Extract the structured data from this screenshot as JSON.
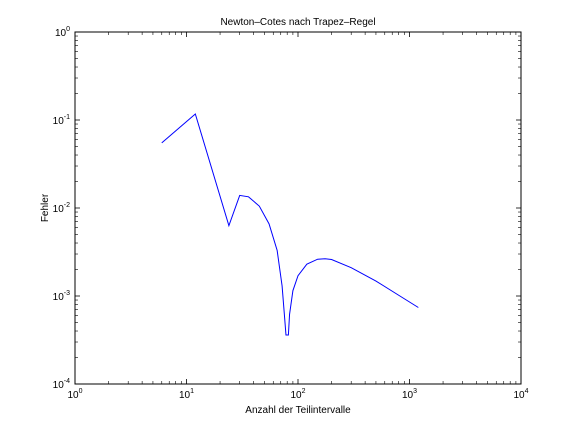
{
  "chart_data": {
    "type": "line",
    "title": "Newton–Cotes nach Trapez–Regel",
    "xlabel": "Anzahl der Teilintervalle",
    "ylabel": "Fehler",
    "xscale": "log",
    "yscale": "log",
    "xlim": [
      1,
      10000
    ],
    "ylim": [
      0.0001,
      1
    ],
    "grid": false,
    "x_ticks": [
      {
        "base": "10",
        "exp": "0",
        "value": 1
      },
      {
        "base": "10",
        "exp": "1",
        "value": 10
      },
      {
        "base": "10",
        "exp": "2",
        "value": 100
      },
      {
        "base": "10",
        "exp": "3",
        "value": 1000
      },
      {
        "base": "10",
        "exp": "4",
        "value": 10000
      }
    ],
    "y_ticks": [
      {
        "base": "10",
        "exp": "-4",
        "value": 0.0001
      },
      {
        "base": "10",
        "exp": "-3",
        "value": 0.001
      },
      {
        "base": "10",
        "exp": "-2",
        "value": 0.01
      },
      {
        "base": "10",
        "exp": "-1",
        "value": 0.1
      },
      {
        "base": "10",
        "exp": "0",
        "value": 1
      }
    ],
    "series": [
      {
        "color": "#0000ff",
        "x": [
          6,
          12,
          24,
          30,
          36,
          45,
          55,
          65,
          72,
          76,
          78,
          82,
          84,
          90,
          100,
          120,
          150,
          175,
          200,
          300,
          500,
          800,
          1200
        ],
        "y": [
          0.055,
          0.117,
          0.0063,
          0.0139,
          0.0134,
          0.0105,
          0.0066,
          0.0033,
          0.0013,
          0.00055,
          0.00036,
          0.00036,
          0.00062,
          0.00115,
          0.0017,
          0.0023,
          0.00262,
          0.00265,
          0.0026,
          0.0021,
          0.00148,
          0.00102,
          0.00074
        ]
      }
    ]
  }
}
